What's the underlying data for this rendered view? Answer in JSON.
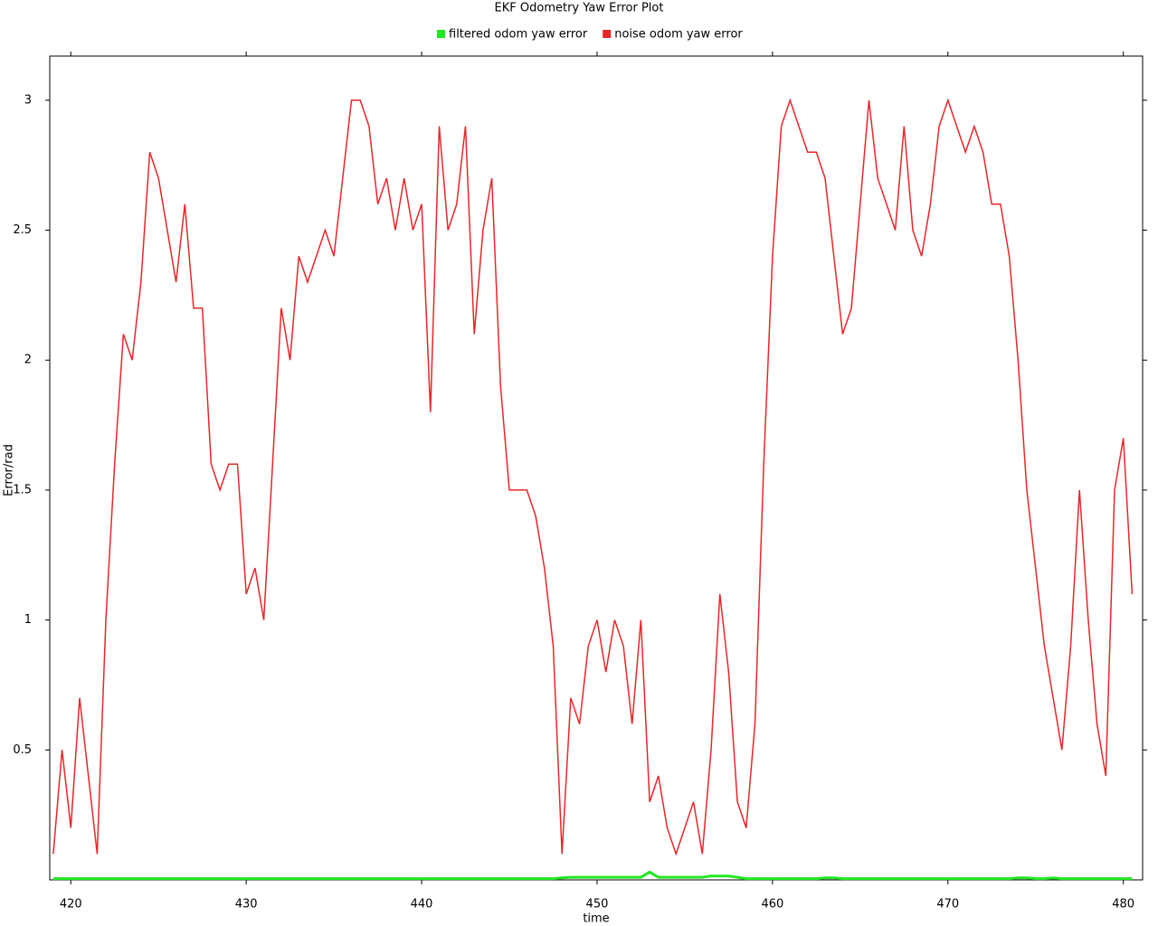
{
  "chart_data": {
    "type": "line",
    "title": "EKF Odometry Yaw Error Plot",
    "x_label": "time",
    "y_label": "Error/rad",
    "x": [
      419,
      419.5,
      420,
      420.5,
      421,
      421.5,
      422,
      422.5,
      423,
      423.5,
      424,
      424.5,
      425,
      425.5,
      426,
      426.5,
      427,
      427.5,
      428,
      428.5,
      429,
      429.5,
      430,
      430.5,
      431,
      431.5,
      432,
      432.5,
      433,
      433.5,
      434,
      434.5,
      435,
      435.5,
      436,
      436.5,
      437,
      437.5,
      438,
      438.5,
      439,
      439.5,
      440,
      440.5,
      441,
      441.5,
      442,
      442.5,
      443,
      443.5,
      444,
      444.5,
      445,
      445.5,
      446,
      446.5,
      447,
      447.5,
      448,
      448.5,
      449,
      449.5,
      450,
      450.5,
      451,
      451.5,
      452,
      452.5,
      453,
      453.5,
      454,
      454.5,
      455,
      455.5,
      456,
      456.5,
      457,
      457.5,
      458,
      458.5,
      459,
      459.5,
      460,
      460.5,
      461,
      461.5,
      462,
      462.5,
      463,
      463.5,
      464,
      464.5,
      465,
      465.5,
      466,
      466.5,
      467,
      467.5,
      468,
      468.5,
      469,
      469.5,
      470,
      470.5,
      471,
      471.5,
      472,
      472.5,
      473,
      473.5,
      474,
      474.5,
      475,
      475.5,
      476,
      476.5,
      477,
      477.5,
      478,
      478.5,
      479,
      479.5,
      480,
      480.5
    ],
    "series": [
      {
        "name": "filtered odom yaw error",
        "color": "#22e822",
        "values": [
          0.005,
          0.005,
          0.005,
          0.005,
          0.005,
          0.005,
          0.005,
          0.005,
          0.005,
          0.005,
          0.005,
          0.005,
          0.005,
          0.005,
          0.005,
          0.005,
          0.005,
          0.005,
          0.005,
          0.005,
          0.005,
          0.005,
          0.005,
          0.005,
          0.005,
          0.005,
          0.005,
          0.005,
          0.005,
          0.005,
          0.005,
          0.005,
          0.005,
          0.005,
          0.005,
          0.005,
          0.005,
          0.005,
          0.005,
          0.005,
          0.005,
          0.005,
          0.005,
          0.005,
          0.005,
          0.005,
          0.005,
          0.005,
          0.005,
          0.005,
          0.005,
          0.005,
          0.005,
          0.005,
          0.005,
          0.005,
          0.005,
          0.005,
          0.008,
          0.01,
          0.01,
          0.01,
          0.01,
          0.01,
          0.01,
          0.01,
          0.01,
          0.01,
          0.03,
          0.01,
          0.01,
          0.01,
          0.01,
          0.01,
          0.01,
          0.015,
          0.015,
          0.015,
          0.01,
          0.005,
          0.005,
          0.005,
          0.005,
          0.005,
          0.005,
          0.005,
          0.005,
          0.005,
          0.008,
          0.008,
          0.005,
          0.005,
          0.005,
          0.005,
          0.005,
          0.005,
          0.005,
          0.005,
          0.005,
          0.005,
          0.005,
          0.005,
          0.005,
          0.005,
          0.005,
          0.005,
          0.005,
          0.005,
          0.005,
          0.005,
          0.008,
          0.008,
          0.005,
          0.005,
          0.008,
          0.005,
          0.005,
          0.005,
          0.005,
          0.005,
          0.005,
          0.005,
          0.005,
          0.005
        ]
      },
      {
        "name": "noise odom yaw error",
        "color": "#e8262a",
        "values": [
          0.1,
          0.5,
          0.2,
          0.7,
          0.4,
          0.1,
          1.0,
          1.6,
          2.1,
          2.0,
          2.3,
          2.8,
          2.7,
          2.5,
          2.3,
          2.6,
          2.2,
          2.2,
          1.6,
          1.5,
          1.6,
          1.6,
          1.1,
          1.2,
          1.0,
          1.6,
          2.2,
          2.0,
          2.4,
          2.3,
          2.4,
          2.5,
          2.4,
          2.7,
          3.0,
          3.0,
          2.9,
          2.6,
          2.7,
          2.5,
          2.7,
          2.5,
          2.6,
          1.8,
          2.9,
          2.5,
          2.6,
          2.9,
          2.1,
          2.5,
          2.7,
          1.9,
          1.5,
          1.5,
          1.5,
          1.4,
          1.2,
          0.9,
          0.1,
          0.7,
          0.6,
          0.9,
          1.0,
          0.8,
          1.0,
          0.9,
          0.6,
          1.0,
          0.3,
          0.4,
          0.2,
          0.1,
          0.2,
          0.3,
          0.1,
          0.5,
          1.1,
          0.8,
          0.3,
          0.2,
          0.6,
          1.6,
          2.4,
          2.9,
          3.0,
          2.9,
          2.8,
          2.8,
          2.7,
          2.4,
          2.1,
          2.2,
          2.6,
          3.0,
          2.7,
          2.6,
          2.5,
          2.9,
          2.5,
          2.4,
          2.6,
          2.9,
          3.0,
          2.9,
          2.8,
          2.9,
          2.8,
          2.6,
          2.6,
          2.4,
          2.0,
          1.5,
          1.2,
          0.9,
          0.7,
          0.5,
          0.9,
          1.5,
          1.0,
          0.6,
          0.4,
          1.5,
          1.7,
          1.1
        ]
      }
    ],
    "xlim": [
      418.8,
      481.1
    ],
    "ylim": [
      0,
      3.17
    ],
    "xticks": [
      420,
      430,
      440,
      450,
      460,
      470,
      480
    ],
    "yticks": [
      0.5,
      1,
      1.5,
      2,
      2.5,
      3
    ]
  }
}
